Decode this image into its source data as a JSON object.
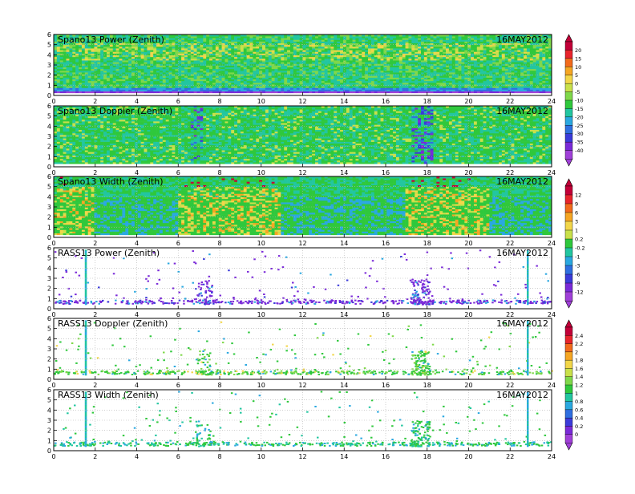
{
  "chart_data": {
    "type": "heatmap",
    "date_label": "16MAY2012",
    "x_ticks": [
      0,
      2,
      4,
      6,
      8,
      10,
      12,
      14,
      16,
      18,
      20,
      22,
      24
    ],
    "y_ticks": [
      0,
      1,
      2,
      3,
      4,
      5,
      6
    ],
    "xlim": [
      0,
      24
    ],
    "ylim": [
      0,
      6
    ],
    "grid": true,
    "panels": [
      {
        "title": "Spano13  Power  (Zenith)",
        "kind": "dense_power",
        "scale": 0
      },
      {
        "title": "Spano13  Doppler  (Zenith)",
        "kind": "dense_doppler",
        "scale": 0
      },
      {
        "title": "Spano13  Width  (Zenith)",
        "kind": "dense_width",
        "scale": 1
      },
      {
        "title": "RASS13  Power  (Zenith)",
        "kind": "sparse_power",
        "scale": 1
      },
      {
        "title": "RASS13  Doppler  (Zenith)",
        "kind": "sparse_doppler",
        "scale": 2
      },
      {
        "title": "RASS13  Width  (Zenith)",
        "kind": "sparse_width",
        "scale": 2
      }
    ],
    "colorbars": [
      {
        "labels": [
          "20",
          "15",
          "10",
          "5",
          "0",
          "-5",
          "-10",
          "-15",
          "-20",
          "-25",
          "-30",
          "-35",
          "-40"
        ]
      },
      {
        "labels": [
          "12",
          "9",
          "6",
          "3",
          "1",
          "0.2",
          "-0.2",
          "-1",
          "-3",
          "-6",
          "-9",
          "-12"
        ]
      },
      {
        "labels": [
          "2.4",
          "2.2",
          "2",
          "1.8",
          "1.6",
          "1.4",
          "1.2",
          "1",
          "0.8",
          "0.6",
          "0.4",
          "0.2",
          "0"
        ]
      }
    ],
    "palette": [
      "#c20038",
      "#e8242c",
      "#f26a1c",
      "#f5a623",
      "#f2d649",
      "#c9e04a",
      "#7fd84a",
      "#2fc83c",
      "#22c6a0",
      "#2aa8e0",
      "#2f6fe0",
      "#3b3bd9",
      "#7a2ad8",
      "#a040d8"
    ]
  }
}
